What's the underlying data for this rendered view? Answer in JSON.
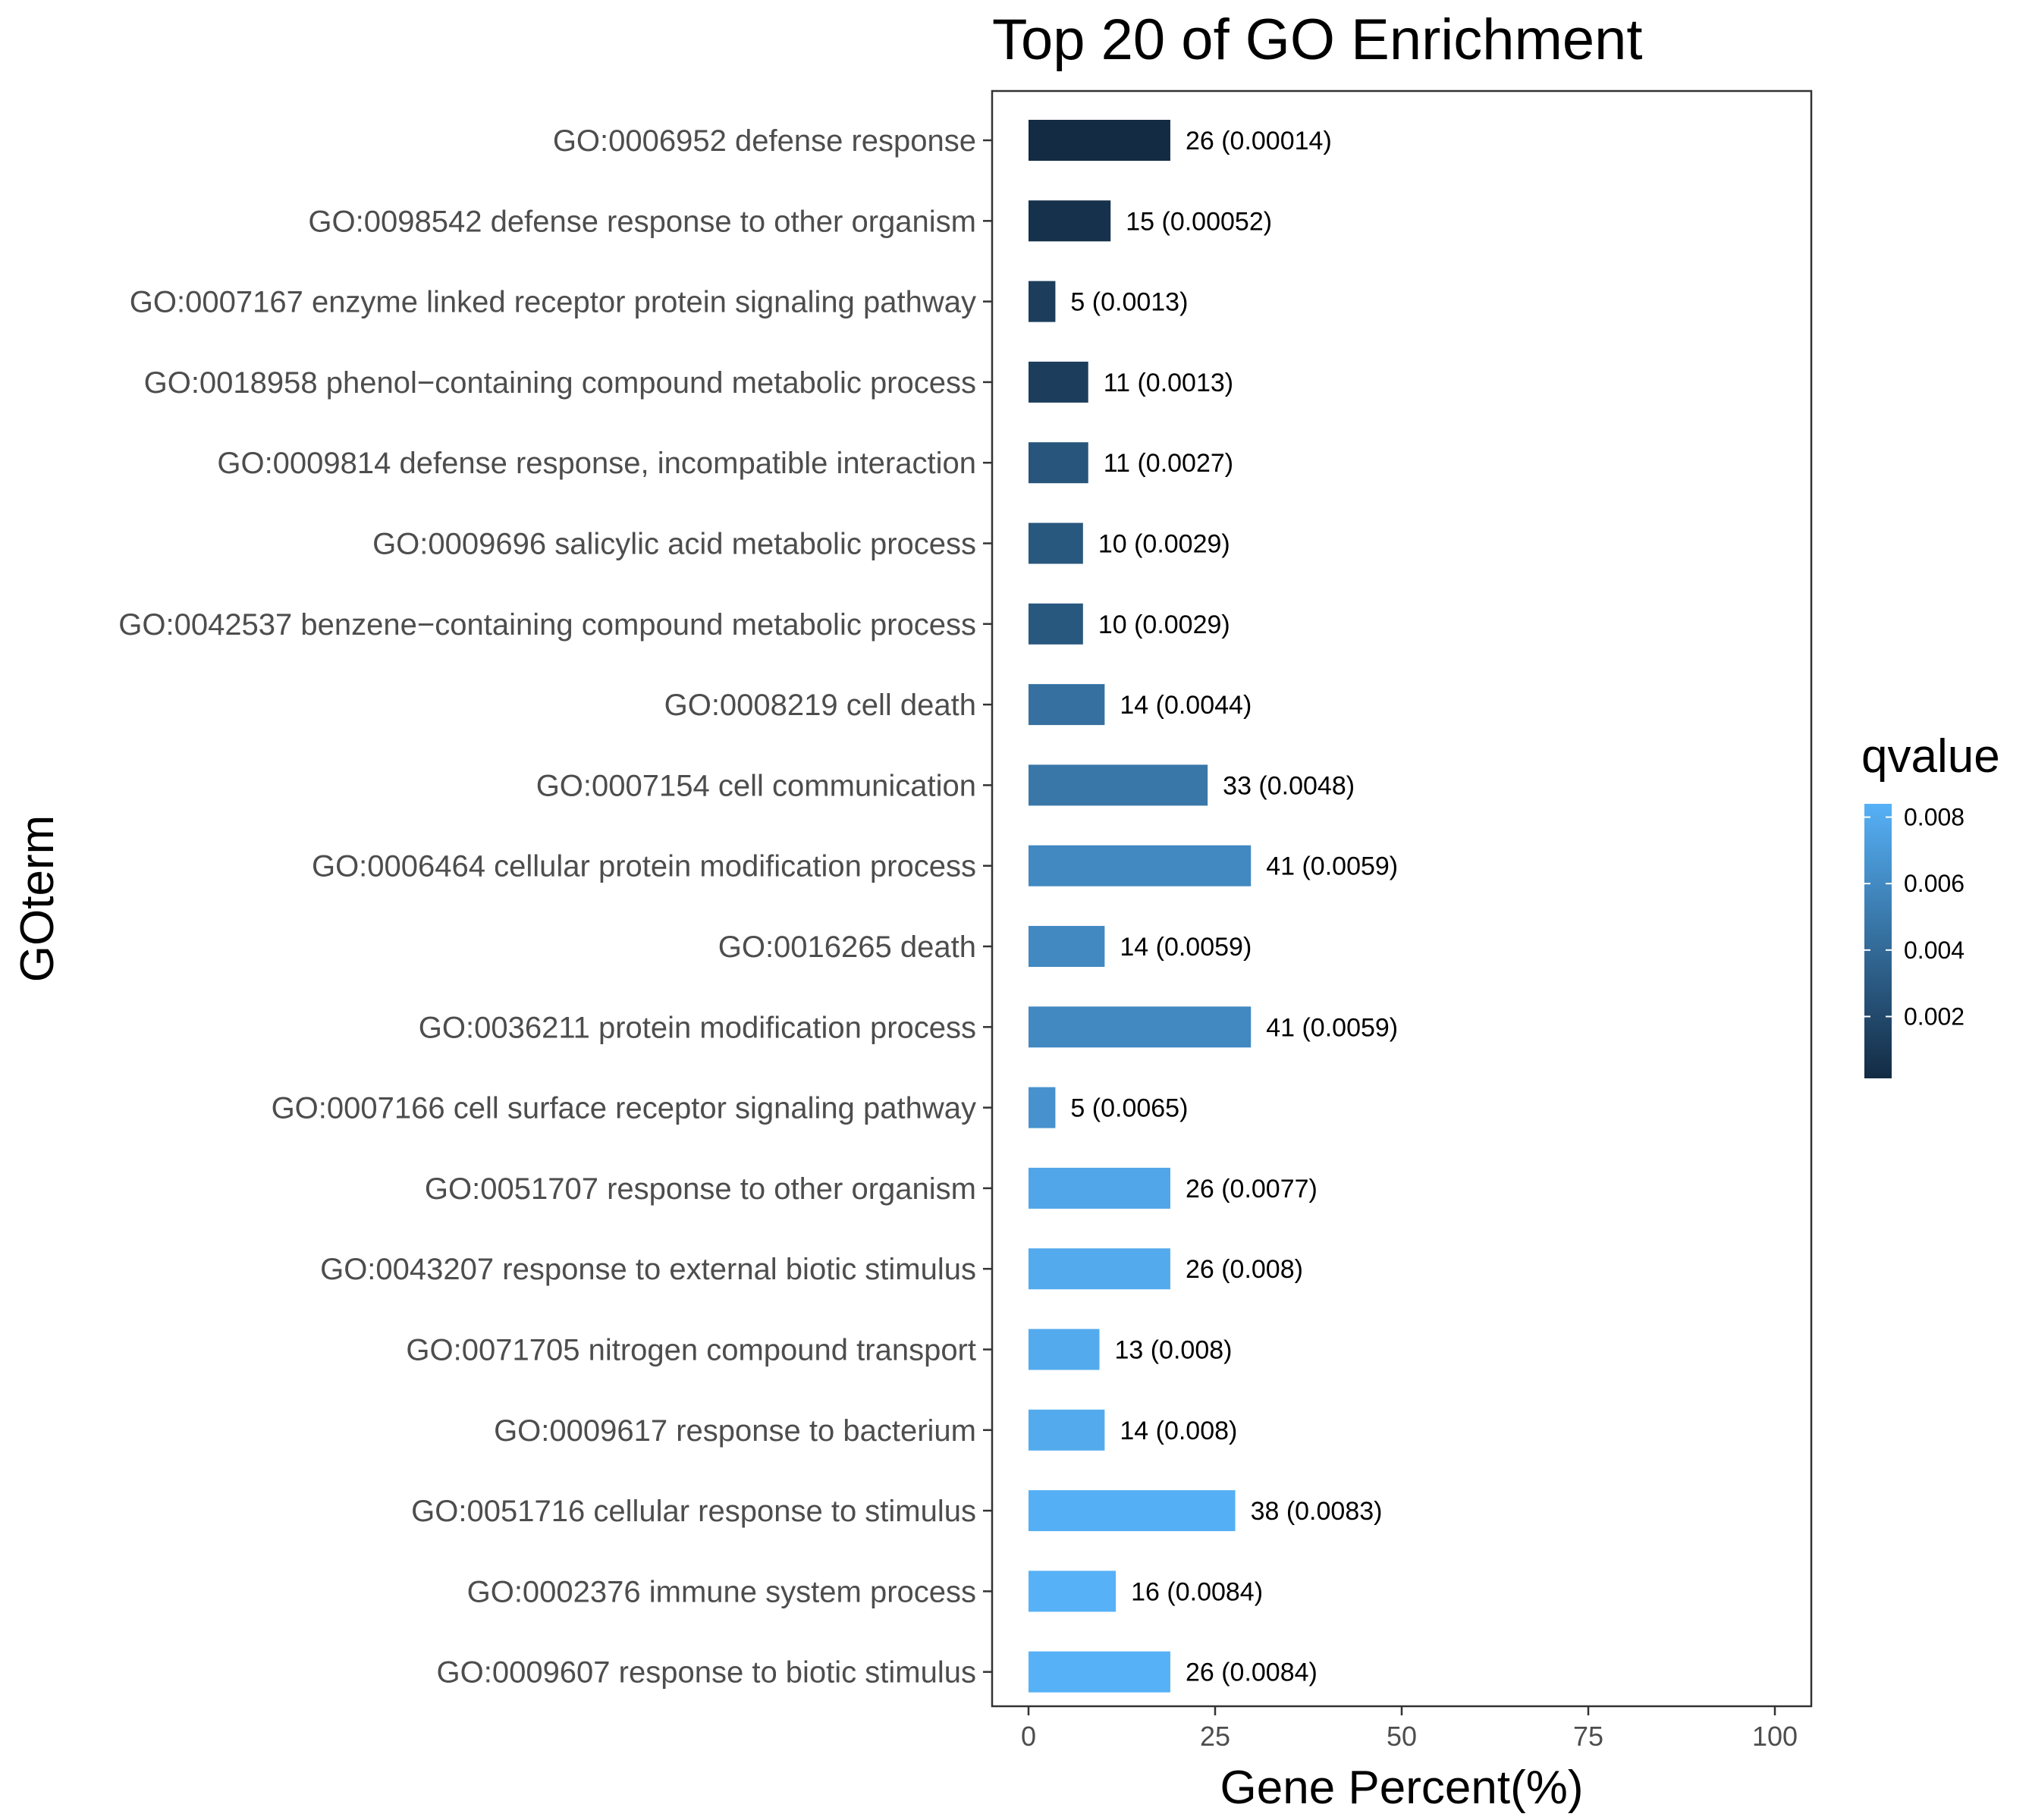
{
  "chart_data": {
    "type": "bar",
    "orientation": "horizontal",
    "title": "Top 20 of GO Enrichment",
    "xlabel": "Gene Percent(%)",
    "ylabel": "GOterm",
    "xlim": [
      0,
      100
    ],
    "xticks": [
      0,
      25,
      50,
      75,
      100
    ],
    "grid": false,
    "categories": [
      "GO:0006952 defense response",
      "GO:0098542 defense response to other organism",
      "GO:0007167 enzyme linked receptor protein signaling pathway",
      "GO:0018958 phenol−containing compound metabolic process",
      "GO:0009814 defense response, incompatible interaction",
      "GO:0009696 salicylic acid metabolic process",
      "GO:0042537 benzene−containing compound metabolic process",
      "GO:0008219 cell death",
      "GO:0007154 cell communication",
      "GO:0006464 cellular protein modification process",
      "GO:0016265 death",
      "GO:0036211 protein modification process",
      "GO:0007166 cell surface receptor signaling pathway",
      "GO:0051707 response to other organism",
      "GO:0043207 response to external biotic stimulus",
      "GO:0071705 nitrogen compound transport",
      "GO:0009617 response to bacterium",
      "GO:0051716 cellular response to stimulus",
      "GO:0002376 immune system process",
      "GO:0009607 response to biotic stimulus"
    ],
    "values": [
      19,
      11,
      3.6,
      8,
      8,
      7.3,
      7.3,
      10.2,
      24,
      29.8,
      10.2,
      29.8,
      3.6,
      19,
      19,
      9.5,
      10.2,
      27.7,
      11.7,
      19
    ],
    "qvalues": [
      0.00014,
      0.00052,
      0.0013,
      0.0013,
      0.0027,
      0.0029,
      0.0029,
      0.0044,
      0.0048,
      0.0059,
      0.0059,
      0.0059,
      0.0065,
      0.0077,
      0.008,
      0.008,
      0.008,
      0.0083,
      0.0084,
      0.0084
    ],
    "bar_labels": [
      "26 (0.00014)",
      "15 (0.00052)",
      "5 (0.0013)",
      "11 (0.0013)",
      "11 (0.0027)",
      "10 (0.0029)",
      "10 (0.0029)",
      "14 (0.0044)",
      "33 (0.0048)",
      "41 (0.0059)",
      "14 (0.0059)",
      "41 (0.0059)",
      "5 (0.0065)",
      "26 (0.0077)",
      "26 (0.008)",
      "13 (0.008)",
      "14 (0.008)",
      "38 (0.0083)",
      "16 (0.0084)",
      "26 (0.0084)"
    ],
    "legend": {
      "title": "qvalue",
      "position": "right",
      "range": [
        0.00014,
        0.0084
      ],
      "ticks": [
        0.002,
        0.004,
        0.006,
        0.008
      ],
      "tick_labels": [
        "0.002",
        "0.004",
        "0.006",
        "0.008"
      ],
      "color_low": "#132B43",
      "color_high": "#56B1F7"
    }
  }
}
